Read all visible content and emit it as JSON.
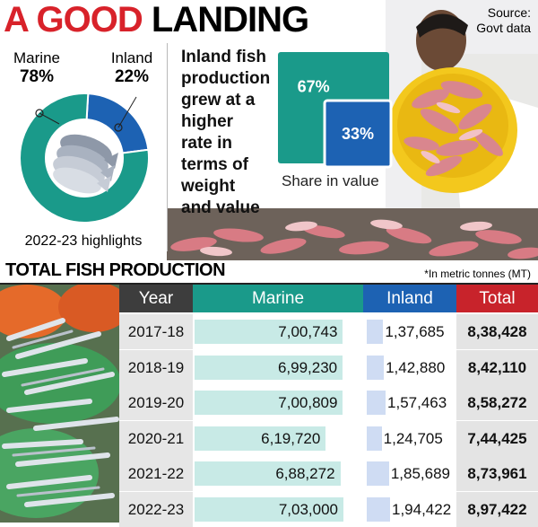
{
  "header": {
    "title_part1": "A GOOD",
    "title_part2": "LANDING",
    "source_line1": "Source:",
    "source_line2": "Govt data"
  },
  "highlights": {
    "caption": "2022-23 highlights",
    "growth_text": [
      "Inland fish",
      "production",
      "grew at a",
      "higher",
      "rate in",
      "terms of",
      "weight",
      "and value"
    ],
    "share_caption": "Share in value"
  },
  "chart_data": [
    {
      "type": "pie",
      "title": "",
      "labels": [
        "Marine",
        "Inland"
      ],
      "values": [
        78,
        22
      ],
      "value_labels": [
        "78%",
        "22%"
      ],
      "colors": [
        "#1a9a8a",
        "#1d62b3"
      ]
    },
    {
      "type": "bar",
      "title": "",
      "xlabel": "Share in value",
      "categories": [
        "Marine",
        "Inland"
      ],
      "values": [
        67,
        33
      ],
      "value_labels": [
        "67%",
        "33%"
      ],
      "colors": [
        "#1a9a8a",
        "#1d62b3"
      ]
    },
    {
      "type": "table",
      "title": "TOTAL FISH PRODUCTION",
      "note": "*In metric tonnes (MT)",
      "columns": [
        "Year",
        "Marine",
        "Inland",
        "Total"
      ],
      "header_colors": [
        "#3d3d3d",
        "#1a9a8a",
        "#1d62b3",
        "#c8232b"
      ],
      "rows": [
        {
          "year": "2017-18",
          "marine": 700743,
          "marine_label": "7,00,743",
          "inland": 137685,
          "inland_label": "1,37,685",
          "total_label": "8,38,428"
        },
        {
          "year": "2018-19",
          "marine": 699230,
          "marine_label": "6,99,230",
          "inland": 142880,
          "inland_label": "1,42,880",
          "total_label": "8,42,110"
        },
        {
          "year": "2019-20",
          "marine": 700809,
          "marine_label": "7,00,809",
          "inland": 157463,
          "inland_label": "1,57,463",
          "total_label": "8,58,272"
        },
        {
          "year": "2020-21",
          "marine": 619720,
          "marine_label": "6,19,720",
          "inland": 124705,
          "inland_label": "1,24,705",
          "total_label": "7,44,425"
        },
        {
          "year": "2021-22",
          "marine": 688272,
          "marine_label": "6,88,272",
          "inland": 185689,
          "inland_label": "1,85,689",
          "total_label": "8,73,961"
        },
        {
          "year": "2022-23",
          "marine": 703000,
          "marine_label": "7,03,000",
          "inland": 194422,
          "inland_label": "1,94,422",
          "total_label": "8,97,422"
        }
      ]
    }
  ]
}
